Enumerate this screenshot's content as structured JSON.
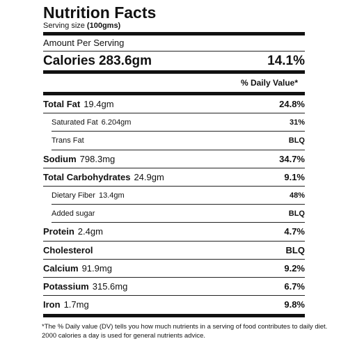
{
  "header": {
    "title": "Nutrition Facts",
    "serving_label": "Serving size",
    "serving_value": "(100gms)"
  },
  "amount_per_serving": "Amount Per Serving",
  "calories": {
    "name": "Calories",
    "amount": "283.6gm",
    "dv": "14.1%"
  },
  "dv_header": "% Daily Value*",
  "rows": [
    {
      "name": "Total Fat",
      "amount": "19.4gm",
      "dv": "24.8%"
    },
    {
      "name": "Saturated Fat",
      "amount": "6.204gm",
      "dv": "31%"
    },
    {
      "name": "Trans Fat",
      "dv": "BLQ"
    },
    {
      "name": "Sodium",
      "amount": "798.3mg",
      "dv": "34.7%"
    },
    {
      "name": "Total Carbohydrates",
      "amount": "24.9gm",
      "dv": "9.1%"
    },
    {
      "name": "Dietary Fiber",
      "amount": "13.4gm",
      "dv": "48%"
    },
    {
      "name": "Added sugar",
      "dv": "BLQ"
    },
    {
      "name": "Protein",
      "amount": "2.4gm",
      "dv": "4.7%"
    },
    {
      "name": "Cholesterol",
      "dv": "BLQ"
    },
    {
      "name": "Calcium",
      "amount": "91.9mg",
      "dv": "9.2%"
    },
    {
      "name": "Potassium",
      "amount": "315.6mg",
      "dv": "6.7%"
    },
    {
      "name": "Iron",
      "amount": "1.7mg",
      "dv": "9.8%"
    }
  ],
  "footnote": [
    "*The % Daily value (DV) tells you how much nutrients in a serving of food contributes to daily diet.",
    "2000 calories a day is used for general nutrients advice."
  ]
}
